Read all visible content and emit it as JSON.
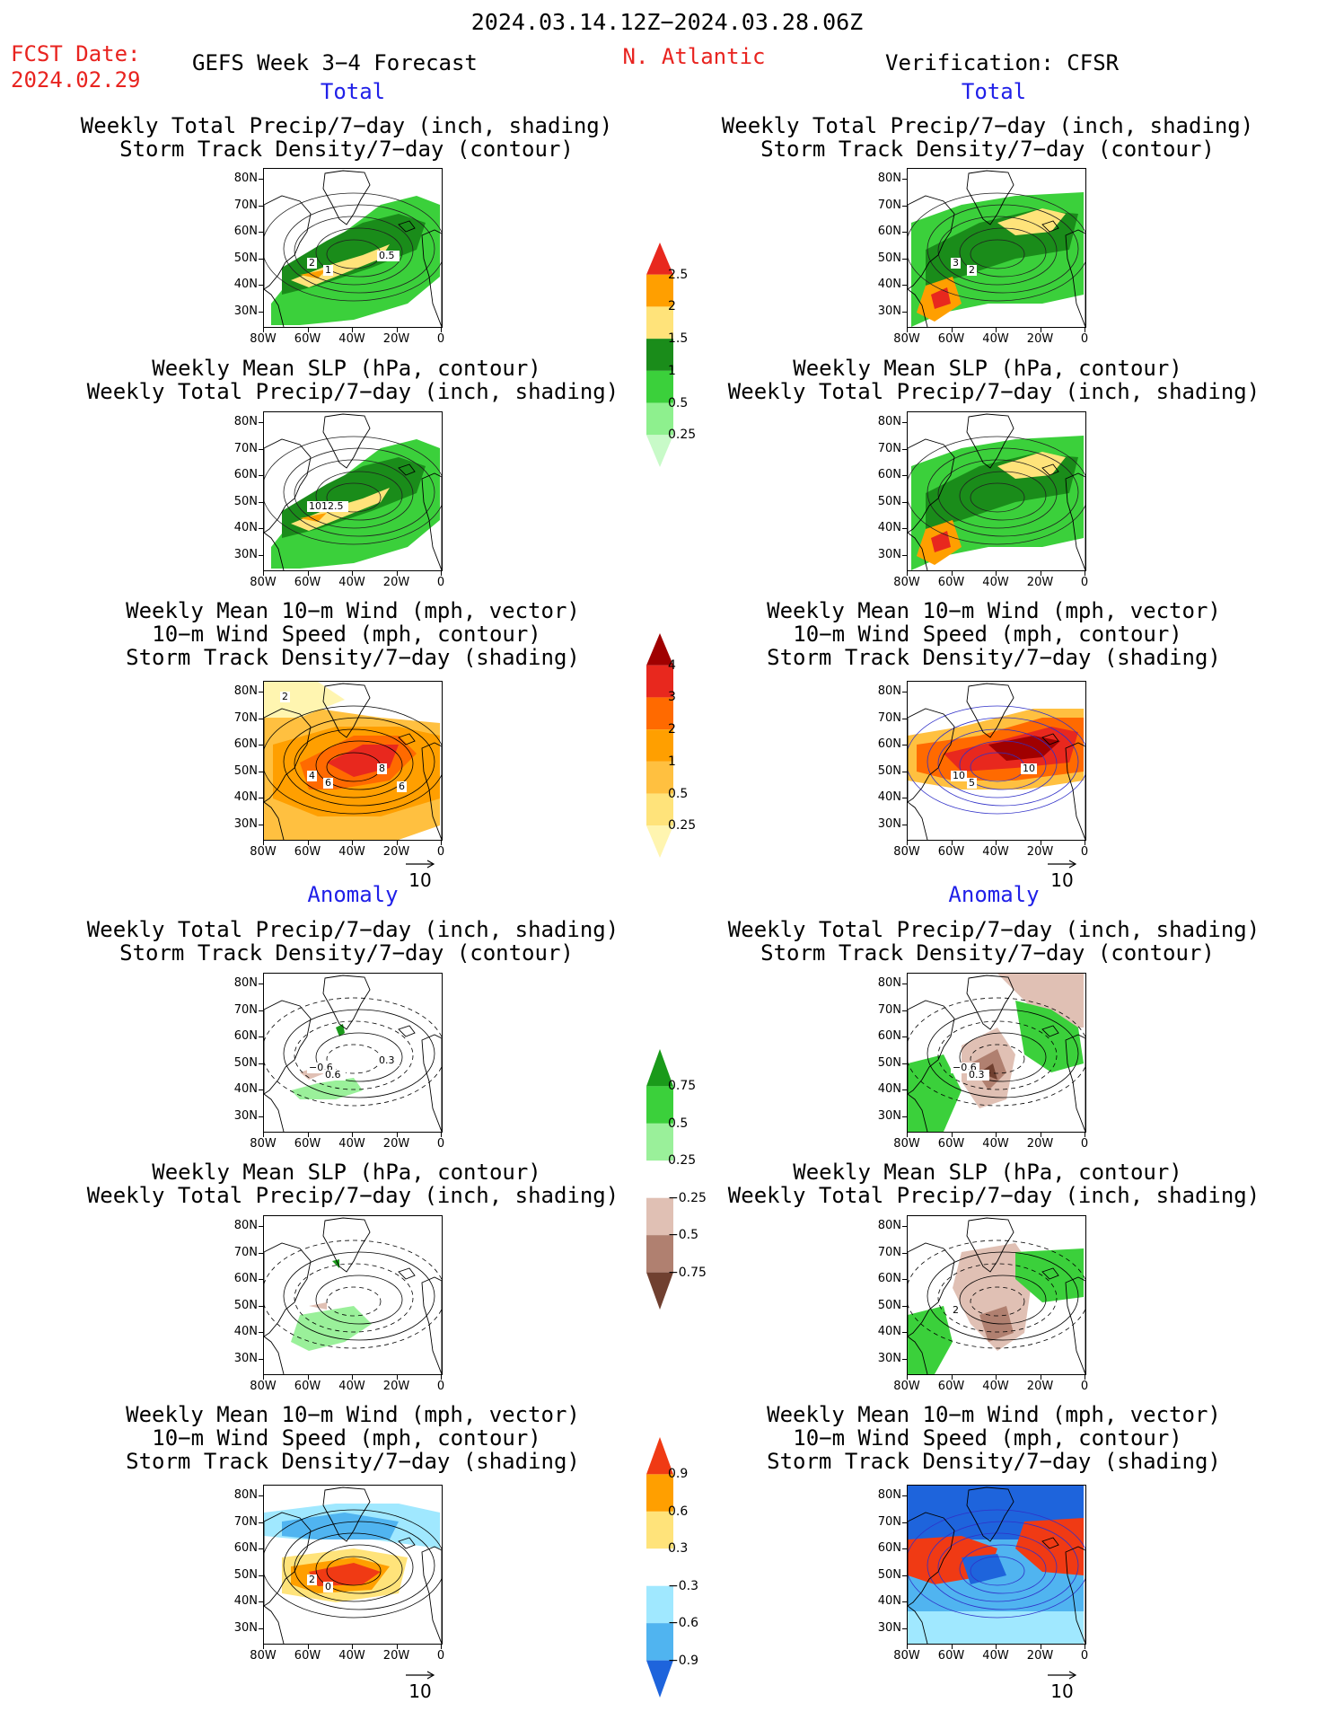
{
  "header": {
    "date_range": "2024.03.14.12Z−2024.03.28.06Z",
    "fcst_label": "FCST Date:",
    "fcst_date": "2024.02.29",
    "forecast_title": "GEFS Week 3−4 Forecast",
    "region": "N. Atlantic",
    "verification": "Verification: CFSR"
  },
  "sections": {
    "total": "Total",
    "anomaly": "Anomaly"
  },
  "titles": {
    "precip_track": [
      "Weekly Total Precip/7−day (inch, shading)",
      "Storm Track Density/7−day (contour)"
    ],
    "slp_precip": [
      "Weekly Mean SLP (hPa, contour)",
      "Weekly Total Precip/7−day (inch, shading)"
    ],
    "wind_track": [
      "Weekly Mean 10−m Wind (mph, vector)",
      "10−m Wind Speed (mph, contour)",
      "Storm Track Density/7−day (shading)"
    ]
  },
  "axes": {
    "y": [
      "80N",
      "70N",
      "60N",
      "50N",
      "40N",
      "30N"
    ],
    "x": [
      "80W",
      "60W",
      "40W",
      "20W",
      "0"
    ]
  },
  "vector_ref": "10",
  "colorbars": {
    "precip_total": {
      "labels": [
        "2.5",
        "2",
        "1.5",
        "1",
        "0.5",
        "0.25"
      ],
      "colors": [
        "#e8281e",
        "#ff9f00",
        "#ffe37a",
        "#1a8c1a",
        "#3bd03b",
        "#8ef08e",
        "#c8fac8"
      ]
    },
    "track_total": {
      "labels": [
        "4",
        "3",
        "2",
        "1",
        "0.5",
        "0.25"
      ],
      "colors": [
        "#a00000",
        "#e8281e",
        "#ff6a00",
        "#ff9f00",
        "#ffc040",
        "#ffe37a",
        "#fff5b0"
      ]
    },
    "precip_anom": {
      "labels": [
        "0.75",
        "0.5",
        "0.25",
        "−0.25",
        "−0.5",
        "−0.75"
      ],
      "colors": [
        "#1a9a1a",
        "#3bd03b",
        "#9af09a",
        "#ffffff",
        "#e0c0b4",
        "#b08070",
        "#704030"
      ]
    },
    "track_anom": {
      "labels": [
        "0.9",
        "0.6",
        "0.3",
        "−0.3",
        "−0.6",
        "−0.9"
      ],
      "colors": [
        "#f03a14",
        "#ff9f00",
        "#ffe37a",
        "#ffffff",
        "#a0e8ff",
        "#50b4f0",
        "#1e64dc"
      ]
    }
  },
  "panel_labels": {
    "l1": [
      "2",
      "1",
      "0.5"
    ],
    "l2": [
      "1012.5"
    ],
    "l3": [
      "4",
      "6",
      "8",
      "2",
      "6"
    ],
    "r1": [
      "3",
      "2"
    ],
    "r3": [
      "10",
      "5",
      "10"
    ],
    "l4": [
      "−0.6",
      "0.6",
      "0.3"
    ],
    "r4": [
      "−0.6",
      "0.3"
    ],
    "r5": [
      "2"
    ],
    "l6": [
      "2",
      "0"
    ]
  }
}
